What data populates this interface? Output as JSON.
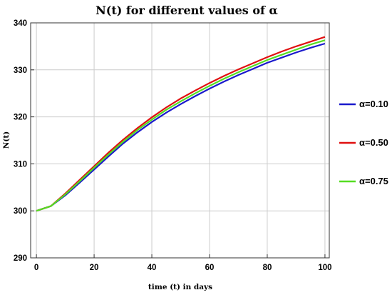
{
  "chart_data": {
    "type": "line",
    "title": "N(t) for different values of α",
    "xlabel": "time (t) in days",
    "ylabel": "N(t)",
    "xlim": [
      -2,
      101.5
    ],
    "ylim": [
      290,
      340
    ],
    "x_ticks": [
      0,
      20,
      40,
      60,
      80,
      100
    ],
    "y_ticks": [
      290,
      300,
      310,
      320,
      330,
      340
    ],
    "grid": true,
    "legend_position": "right",
    "series": [
      {
        "name": "α=0.10",
        "color": "#1a1acc",
        "x": [
          0,
          5,
          10,
          15,
          20,
          25,
          30,
          35,
          40,
          45,
          50,
          55,
          60,
          65,
          70,
          75,
          80,
          85,
          90,
          95,
          100
        ],
        "y": [
          300,
          301,
          303.3,
          306.0,
          308.8,
          311.6,
          314.3,
          316.7,
          318.9,
          320.9,
          322.7,
          324.4,
          326.0,
          327.5,
          328.9,
          330.2,
          331.5,
          332.6,
          333.7,
          334.7,
          335.6
        ]
      },
      {
        "name": "α=0.50",
        "color": "#e01010",
        "x": [
          0,
          5,
          10,
          15,
          20,
          25,
          30,
          35,
          40,
          45,
          50,
          55,
          60,
          65,
          70,
          75,
          80,
          85,
          90,
          95,
          100
        ],
        "y": [
          300,
          301,
          303.7,
          306.6,
          309.5,
          312.4,
          315.1,
          317.6,
          319.9,
          322.0,
          323.9,
          325.6,
          327.2,
          328.7,
          330.1,
          331.4,
          332.7,
          333.9,
          335.0,
          336.0,
          337.0
        ]
      },
      {
        "name": "α=0.75",
        "color": "#55dd22",
        "x": [
          0,
          5,
          10,
          15,
          20,
          25,
          30,
          35,
          40,
          45,
          50,
          55,
          60,
          65,
          70,
          75,
          80,
          85,
          90,
          95,
          100
        ],
        "y": [
          300,
          301,
          303.5,
          306.3,
          309.2,
          312.0,
          314.7,
          317.2,
          319.4,
          321.5,
          323.3,
          325.0,
          326.6,
          328.1,
          329.5,
          330.8,
          332.1,
          333.2,
          334.3,
          335.4,
          336.3
        ]
      }
    ]
  }
}
